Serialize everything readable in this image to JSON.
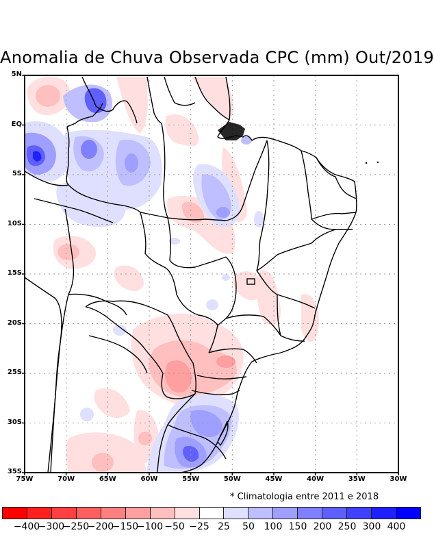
{
  "title": "Anomalia de Chuva Observada CPC (mm) Out/2019",
  "note": "* Climatologia entre 2011 e 2018",
  "map": {
    "type": "filled-contour-map",
    "region": "Brazil / South America",
    "lon_range": [
      -75,
      -30
    ],
    "lat_range": [
      -35,
      5
    ],
    "gridlines": "dotted",
    "lat_ticks": [
      "5N",
      "EQ",
      "5S",
      "10S",
      "15S",
      "20S",
      "25S",
      "30S",
      "35S"
    ],
    "lon_ticks": [
      "75W",
      "70W",
      "65W",
      "60W",
      "55W",
      "50W",
      "45W",
      "40W",
      "35W",
      "30W"
    ],
    "anomaly_regions": [
      {
        "name": "northwest-amazon-wet",
        "sign": "positive",
        "peak_mm": 300,
        "lon": -73.5,
        "lat": -3
      },
      {
        "name": "north-roraima-wet",
        "sign": "positive",
        "peak_mm": 200,
        "lon": -66,
        "lat": 2.5
      },
      {
        "name": "central-amazon-wet",
        "sign": "positive",
        "peak_mm": 150,
        "lon": -62,
        "lat": -4
      },
      {
        "name": "para-tocantins-wet",
        "sign": "positive",
        "peak_mm": 150,
        "lon": -53,
        "lat": -9
      },
      {
        "name": "rio-grande-do-sul-uruguay-wet",
        "sign": "positive",
        "peak_mm": 250,
        "lon": -55,
        "lat": -33
      },
      {
        "name": "parana-paraguay-dry",
        "sign": "negative",
        "peak_mm": -150,
        "lon": -56,
        "lat": -25
      },
      {
        "name": "northwest-dry",
        "sign": "negative",
        "peak_mm": -100,
        "lon": -70,
        "lat": 3
      },
      {
        "name": "bolivia-dry",
        "sign": "negative",
        "peak_mm": -100,
        "lon": -69,
        "lat": -12.5
      },
      {
        "name": "acre-dry",
        "sign": "negative",
        "peak_mm": -100,
        "lon": -66,
        "lat": -8
      }
    ]
  },
  "colorbar": {
    "colors": [
      "#ff0000",
      "#ff2020",
      "#ff4040",
      "#ff5f5f",
      "#ff8080",
      "#ff9f9f",
      "#ffbfbf",
      "#ffdfdf",
      "#ffffff",
      "#dfdfff",
      "#bfbfff",
      "#9f9fff",
      "#8080ff",
      "#5f5fff",
      "#4040ff",
      "#2020ff",
      "#0000ff"
    ],
    "labels": [
      "-400",
      "-300",
      "-250",
      "-200",
      "-150",
      "-100",
      "-50",
      "-25",
      "25",
      "50",
      "100",
      "150",
      "200",
      "250",
      "300",
      "400"
    ],
    "units": "mm"
  }
}
